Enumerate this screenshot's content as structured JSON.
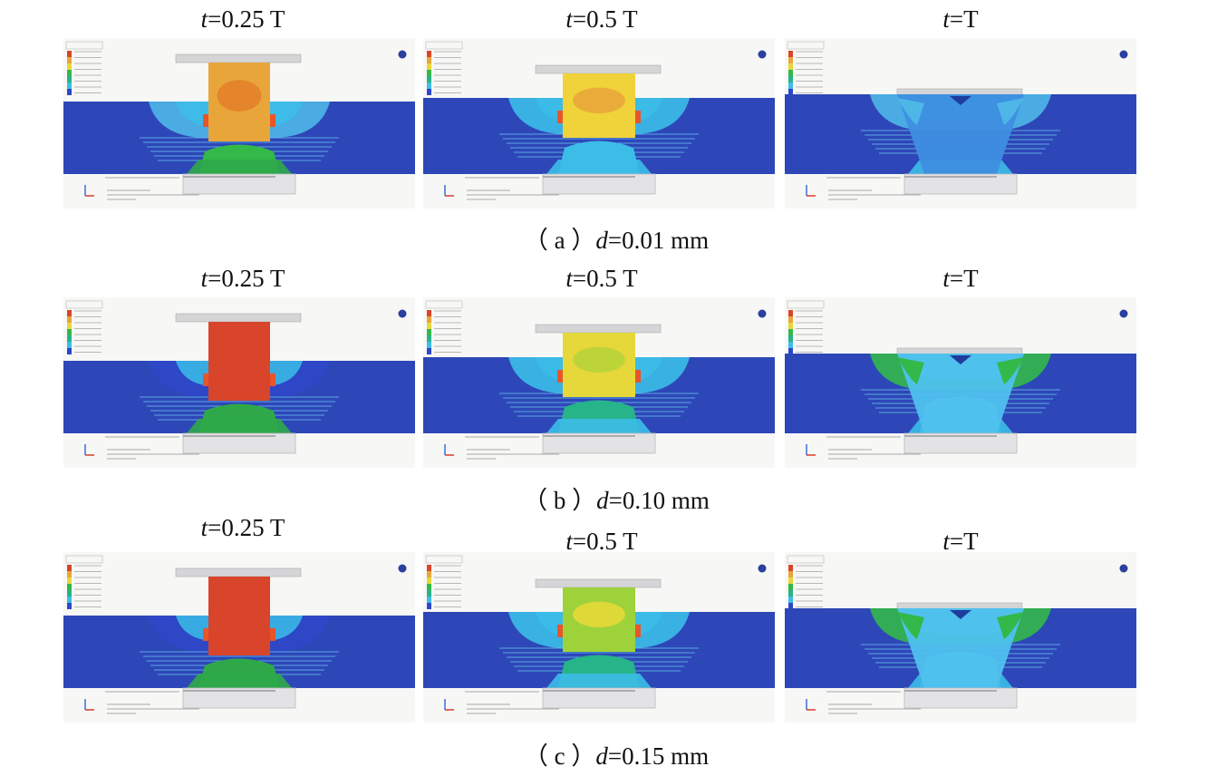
{
  "figure": {
    "time_prefix": "t",
    "time_labels": [
      "=0.25 T",
      "=0.5 T",
      "=T"
    ],
    "rows": [
      {
        "caption_prefix": "（ a ）",
        "caption_var": "d",
        "caption_value": "=0.01 mm",
        "panels": [
          {
            "shaft": "#e8a63a",
            "shaft_core": "#e3812a",
            "lower": "#33b84a",
            "spread": "#4fb6e8",
            "level": 0
          },
          {
            "shaft": "#f0d23a",
            "shaft_core": "#e8a63a",
            "lower": "#3cbde8",
            "spread": "#3cbde8",
            "level": 1
          },
          {
            "shaft": "#3e8ee0",
            "shaft_core": "#3e8ee0",
            "lower": "#1e5bd0",
            "spread": "#4fb6e8",
            "level": 2
          }
        ]
      },
      {
        "caption_prefix": "（ b ）",
        "caption_var": "d",
        "caption_value": "=0.10 mm",
        "panels": [
          {
            "shaft": "#d8452a",
            "shaft_core": "#d8452a",
            "lower": "#2fa84a",
            "spread": "#2d47c8",
            "level": 0
          },
          {
            "shaft": "#e6d83a",
            "shaft_core": "#b8d43a",
            "lower": "#26b488",
            "spread": "#3cbde8",
            "level": 1
          },
          {
            "shaft": "#4fc1ee",
            "shaft_core": "#4fc1ee",
            "lower": "#4fc1ee",
            "spread": "#33b84a",
            "level": 2
          }
        ]
      },
      {
        "caption_prefix": "（ c ）",
        "caption_var": "d",
        "caption_value": "=0.15 mm",
        "panels": [
          {
            "shaft": "#d8452a",
            "shaft_core": "#d8452a",
            "lower": "#2fa84a",
            "spread": "#2d47c8",
            "level": 0
          },
          {
            "shaft": "#9ed23a",
            "shaft_core": "#e6d83a",
            "lower": "#26b488",
            "spread": "#3cbde8",
            "level": 1
          },
          {
            "shaft": "#4fc1ee",
            "shaft_core": "#4fc1ee",
            "lower": "#4fc1ee",
            "spread": "#33b84a",
            "level": 2
          }
        ]
      }
    ],
    "colors": {
      "plate": "#2d47b8",
      "tool": "#d5d5d7",
      "background": "#f7f7f5"
    }
  }
}
